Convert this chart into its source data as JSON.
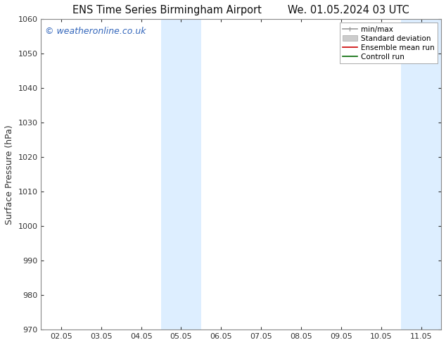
{
  "title_left": "ENS Time Series Birmingham Airport",
  "title_right": "We. 01.05.2024 03 UTC",
  "ylabel": "Surface Pressure (hPa)",
  "ylim": [
    970,
    1060
  ],
  "yticks": [
    970,
    980,
    990,
    1000,
    1010,
    1020,
    1030,
    1040,
    1050,
    1060
  ],
  "xtick_labels": [
    "02.05",
    "03.05",
    "04.05",
    "05.05",
    "06.05",
    "07.05",
    "08.05",
    "09.05",
    "10.05",
    "11.05"
  ],
  "xtick_positions": [
    1,
    2,
    3,
    4,
    5,
    6,
    7,
    8,
    9,
    10
  ],
  "xlim": [
    0.5,
    10.5
  ],
  "shaded_regions": [
    {
      "xmin": 3.5,
      "xmax": 4.5,
      "color": "#ddeeff"
    },
    {
      "xmin": 9.5,
      "xmax": 10.5,
      "color": "#ddeeff"
    }
  ],
  "watermark_text": "© weatheronline.co.uk",
  "watermark_color": "#3366bb",
  "background_color": "#ffffff",
  "legend_entries": [
    {
      "label": "min/max",
      "color": "#999999"
    },
    {
      "label": "Standard deviation",
      "color": "#cccccc"
    },
    {
      "label": "Ensemble mean run",
      "color": "#cc0000"
    },
    {
      "label": "Controll run",
      "color": "#006600"
    }
  ],
  "spine_color": "#888888",
  "tick_color": "#333333",
  "title_fontsize": 10.5,
  "label_fontsize": 9,
  "tick_fontsize": 8,
  "watermark_fontsize": 9
}
